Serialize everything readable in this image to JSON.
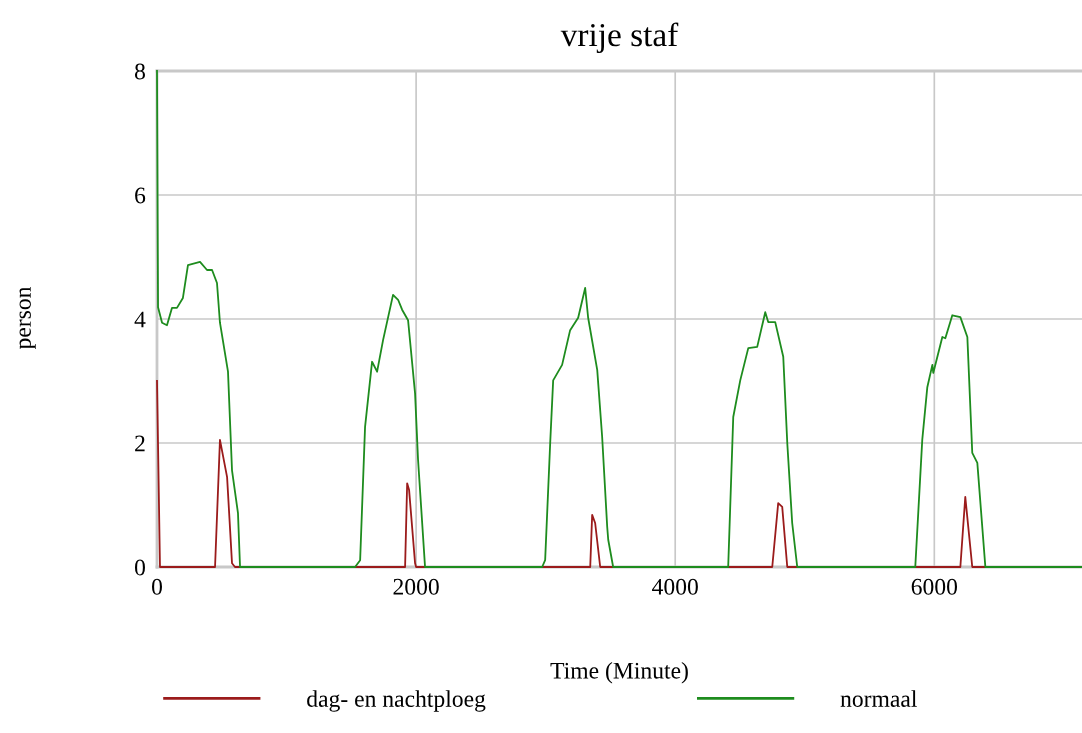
{
  "chart_data": {
    "type": "line",
    "title": "vrije staf",
    "xlabel": "Time (Minute)",
    "ylabel": "person",
    "xlim": [
      0,
      7140
    ],
    "ylim": [
      0,
      8
    ],
    "xticks": [
      0,
      2000,
      4000,
      6000
    ],
    "yticks": [
      0,
      2,
      4,
      6,
      8
    ],
    "grid": true,
    "legend": "bottom",
    "marker": "none",
    "line_style": "solid",
    "series": [
      {
        "name": "dag- en nachtploeg",
        "color": "#9b1b1b",
        "x": [
          0,
          23,
          448,
          486,
          541,
          579,
          602,
          1915,
          1931,
          1946,
          1992,
          2000,
          3344,
          3359,
          3382,
          3421,
          4749,
          4795,
          4826,
          4865,
          6201,
          6239,
          6293,
          7140
        ],
        "values": [
          3.0,
          0,
          0,
          2.05,
          1.45,
          0.06,
          0,
          0,
          1.35,
          1.24,
          0.06,
          0,
          0,
          0.84,
          0.71,
          0,
          0,
          1.03,
          0.97,
          0,
          0,
          1.13,
          0,
          0
        ]
      },
      {
        "name": "normaal",
        "color": "#1e8c1e",
        "x": [
          0,
          8,
          39,
          77,
          116,
          154,
          200,
          239,
          332,
          386,
          425,
          463,
          486,
          548,
          579,
          625,
          641,
          1529,
          1568,
          1606,
          1660,
          1699,
          1745,
          1822,
          1861,
          1892,
          1938,
          1992,
          2015,
          2069,
          2973,
          2996,
          3035,
          3058,
          3127,
          3189,
          3251,
          3305,
          3328,
          3398,
          3436,
          3475,
          3483,
          3521,
          4409,
          4448,
          4502,
          4564,
          4633,
          4695,
          4718,
          4772,
          4834,
          4865,
          4903,
          4942,
          5853,
          5907,
          5946,
          5985,
          5992,
          6062,
          6085,
          6139,
          6201,
          6255,
          6293,
          6332,
          6394,
          7140
        ],
        "values": [
          8.0,
          4.19,
          3.94,
          3.9,
          4.18,
          4.18,
          4.34,
          4.87,
          4.92,
          4.79,
          4.79,
          4.58,
          3.94,
          3.15,
          1.56,
          0.87,
          0,
          0,
          0.11,
          2.26,
          3.31,
          3.15,
          3.66,
          4.39,
          4.31,
          4.15,
          3.98,
          2.8,
          1.73,
          0,
          0,
          0.11,
          2.0,
          3.01,
          3.26,
          3.82,
          4.02,
          4.5,
          4.02,
          3.18,
          2.1,
          0.65,
          0.44,
          0,
          0,
          2.42,
          3.01,
          3.53,
          3.55,
          4.11,
          3.95,
          3.95,
          3.39,
          2.0,
          0.71,
          0,
          0,
          2.05,
          2.9,
          3.26,
          3.13,
          3.71,
          3.69,
          4.06,
          4.03,
          3.71,
          1.84,
          1.68,
          0,
          0
        ]
      }
    ]
  }
}
